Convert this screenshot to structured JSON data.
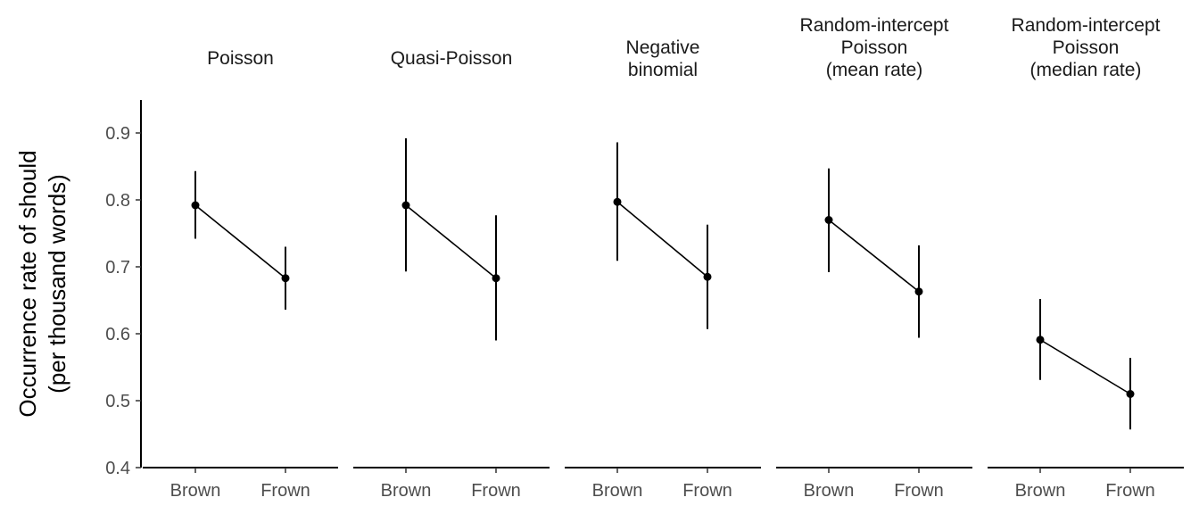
{
  "chart_data": {
    "type": "line",
    "ylabel": [
      "Occurrence rate of should",
      "(per thousand words)"
    ],
    "ylim": [
      0.4,
      0.95
    ],
    "yticks": [
      "0.4",
      "0.5",
      "0.6",
      "0.7",
      "0.8",
      "0.9"
    ],
    "categories": [
      "Brown",
      "Frown"
    ],
    "grid": false,
    "panels": [
      {
        "title": [
          "Poisson"
        ],
        "points": [
          {
            "x": "Brown",
            "y": 0.792,
            "lower": 0.742,
            "upper": 0.843
          },
          {
            "x": "Frown",
            "y": 0.683,
            "lower": 0.636,
            "upper": 0.73
          }
        ]
      },
      {
        "title": [
          "Quasi-Poisson"
        ],
        "points": [
          {
            "x": "Brown",
            "y": 0.792,
            "lower": 0.693,
            "upper": 0.892
          },
          {
            "x": "Frown",
            "y": 0.683,
            "lower": 0.59,
            "upper": 0.777
          }
        ]
      },
      {
        "title": [
          "Negative",
          "binomial"
        ],
        "points": [
          {
            "x": "Brown",
            "y": 0.797,
            "lower": 0.709,
            "upper": 0.886
          },
          {
            "x": "Frown",
            "y": 0.685,
            "lower": 0.607,
            "upper": 0.763
          }
        ]
      },
      {
        "title": [
          "Random-intercept",
          "Poisson",
          "(mean rate)"
        ],
        "points": [
          {
            "x": "Brown",
            "y": 0.77,
            "lower": 0.692,
            "upper": 0.847
          },
          {
            "x": "Frown",
            "y": 0.663,
            "lower": 0.594,
            "upper": 0.732
          }
        ]
      },
      {
        "title": [
          "Random-intercept",
          "Poisson",
          "(median rate)"
        ],
        "points": [
          {
            "x": "Brown",
            "y": 0.591,
            "lower": 0.531,
            "upper": 0.652
          },
          {
            "x": "Frown",
            "y": 0.51,
            "lower": 0.457,
            "upper": 0.564
          }
        ]
      }
    ]
  }
}
